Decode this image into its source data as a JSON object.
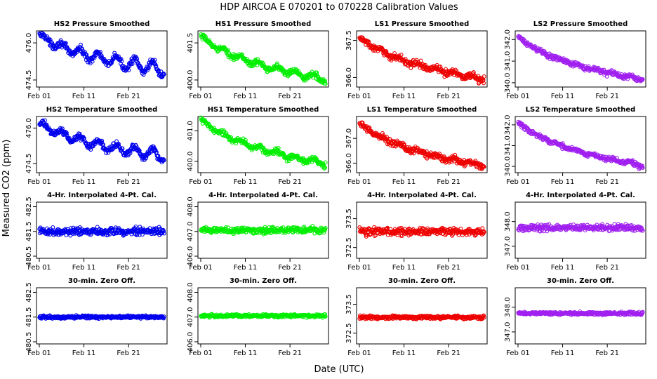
{
  "figure": {
    "title": "HDP    AIRCOA E    070201 to 070228    Calibration Values",
    "xlabel": "Date (UTC)",
    "ylabel": "Measured CO2 (ppm)",
    "x_tick_labels": [
      "Feb 01",
      "Feb 11",
      "Feb 21"
    ]
  },
  "colors": {
    "HS2": "#0000ee",
    "HS1": "#00ee00",
    "LS1": "#ee0000",
    "LS2": "#a020f0"
  },
  "chart_data": [
    {
      "type": "scatter",
      "row": 0,
      "col": 0,
      "tank": "HS2",
      "title": "HS2 Pressure Smoothed",
      "xlim": [
        0,
        28
      ],
      "ylim": [
        474.3,
        476.4
      ],
      "yticks": [
        474.5,
        476.0
      ],
      "ytick_labels": [
        "474.5",
        "476.0"
      ],
      "shape": "trend",
      "start": 476.3,
      "end": 474.9,
      "noise": 0.08,
      "wave": 0.28
    },
    {
      "type": "scatter",
      "row": 0,
      "col": 1,
      "tank": "HS1",
      "title": "HS1 Pressure Smoothed",
      "xlim": [
        0,
        28
      ],
      "ylim": [
        399.8,
        401.9
      ],
      "yticks": [
        400.0,
        401.5
      ],
      "ytick_labels": [
        "400.0",
        "401.5"
      ],
      "shape": "trend",
      "start": 401.75,
      "end": 400.0,
      "noise": 0.07,
      "wave": 0.12
    },
    {
      "type": "scatter",
      "row": 0,
      "col": 2,
      "tank": "LS1",
      "title": "LS1 Pressure Smoothed",
      "xlim": [
        0,
        28
      ],
      "ylim": [
        365.7,
        367.8
      ],
      "yticks": [
        366.0,
        367.5
      ],
      "ytick_labels": [
        "366.0",
        "367.5"
      ],
      "shape": "trend",
      "start": 367.6,
      "end": 365.9,
      "noise": 0.08,
      "wave": 0.08
    },
    {
      "type": "scatter",
      "row": 0,
      "col": 3,
      "tank": "LS2",
      "title": "LS2 Pressure Smoothed",
      "xlim": [
        0,
        28
      ],
      "ylim": [
        339.9,
        342.3
      ],
      "yticks": [
        340.0,
        341.0,
        342.0
      ],
      "ytick_labels": [
        "340.0",
        "341.0",
        "342.0"
      ],
      "shape": "trend",
      "start": 342.1,
      "end": 340.1,
      "noise": 0.07,
      "wave": 0.05
    },
    {
      "type": "scatter",
      "row": 1,
      "col": 0,
      "tank": "HS2",
      "title": "HS2 Temperature Smoothed",
      "xlim": [
        0,
        28
      ],
      "ylim": [
        474.2,
        476.4
      ],
      "yticks": [
        474.5,
        476.0
      ],
      "ytick_labels": [
        "474.5",
        "476.0"
      ],
      "shape": "trend",
      "start": 476.2,
      "end": 474.8,
      "noise": 0.08,
      "wave": 0.25
    },
    {
      "type": "scatter",
      "row": 1,
      "col": 1,
      "tank": "HS1",
      "title": "HS1 Temperature Smoothed",
      "xlim": [
        0,
        28
      ],
      "ylim": [
        399.7,
        401.4
      ],
      "yticks": [
        400.0,
        401.0
      ],
      "ytick_labels": [
        "400.0",
        "401.0"
      ],
      "shape": "trend",
      "start": 401.35,
      "end": 399.9,
      "noise": 0.06,
      "wave": 0.08
    },
    {
      "type": "scatter",
      "row": 1,
      "col": 2,
      "tank": "LS1",
      "title": "LS1 Temperature Smoothed",
      "xlim": [
        0,
        28
      ],
      "ylim": [
        365.7,
        367.8
      ],
      "yticks": [
        366.0,
        367.0
      ],
      "ytick_labels": [
        "366.0",
        "367.0"
      ],
      "shape": "trend",
      "start": 367.6,
      "end": 365.85,
      "noise": 0.08,
      "wave": 0.07
    },
    {
      "type": "scatter",
      "row": 1,
      "col": 3,
      "tank": "LS2",
      "title": "LS2 Temperature Smoothed",
      "xlim": [
        0,
        28
      ],
      "ylim": [
        339.8,
        342.3
      ],
      "yticks": [
        340.0,
        341.0,
        342.0
      ],
      "ytick_labels": [
        "340.0",
        "341.0",
        "342.0"
      ],
      "shape": "trend",
      "start": 342.1,
      "end": 340.0,
      "noise": 0.07,
      "wave": 0.05
    },
    {
      "type": "scatter",
      "row": 2,
      "col": 0,
      "tank": "HS2",
      "title": "4-Hr. Interpolated 4-Pt. Cal.",
      "xlim": [
        0,
        28
      ],
      "ylim": [
        480.5,
        482.6
      ],
      "yticks": [
        480.5,
        481.5,
        482.5
      ],
      "ytick_labels": [
        "480.5",
        "481.5",
        "482.5"
      ],
      "shape": "flat",
      "start": 481.5,
      "end": 481.5,
      "noise": 0.09,
      "wave": 0.0
    },
    {
      "type": "scatter",
      "row": 2,
      "col": 1,
      "tank": "HS1",
      "title": "4-Hr. Interpolated 4-Pt. Cal.",
      "xlim": [
        0,
        28
      ],
      "ylim": [
        406.0,
        408.1
      ],
      "yticks": [
        406.0,
        407.0,
        408.0
      ],
      "ytick_labels": [
        "406.0",
        "407.0",
        "408.0"
      ],
      "shape": "flat",
      "start": 407.05,
      "end": 407.05,
      "noise": 0.08,
      "wave": 0.0
    },
    {
      "type": "scatter",
      "row": 2,
      "col": 2,
      "tank": "LS1",
      "title": "4-Hr. Interpolated 4-Pt. Cal.",
      "xlim": [
        0,
        28
      ],
      "ylim": [
        372.2,
        374.0
      ],
      "yticks": [
        372.5,
        373.5
      ],
      "ytick_labels": [
        "372.5",
        "373.5"
      ],
      "shape": "flat",
      "start": 373.05,
      "end": 373.05,
      "noise": 0.08,
      "wave": 0.0
    },
    {
      "type": "scatter",
      "row": 2,
      "col": 3,
      "tank": "LS2",
      "title": "4-Hr. Interpolated 4-Pt. Cal.",
      "xlim": [
        0,
        28
      ],
      "ylim": [
        346.6,
        348.7
      ],
      "yticks": [
        347.0,
        348.0
      ],
      "ytick_labels": [
        "347.0",
        "348.0"
      ],
      "shape": "flat",
      "start": 347.75,
      "end": 347.75,
      "noise": 0.08,
      "wave": 0.0
    },
    {
      "type": "scatter",
      "row": 3,
      "col": 0,
      "tank": "HS2",
      "title": "30-min. Zero Off.",
      "xlim": [
        0,
        28
      ],
      "ylim": [
        480.5,
        482.6
      ],
      "yticks": [
        480.5,
        481.5,
        482.5
      ],
      "ytick_labels": [
        "480.5",
        "481.5",
        "482.5"
      ],
      "shape": "flat",
      "start": 481.5,
      "end": 481.5,
      "noise": 0.035,
      "wave": 0.0
    },
    {
      "type": "scatter",
      "row": 3,
      "col": 1,
      "tank": "HS1",
      "title": "30-min. Zero Off.",
      "xlim": [
        0,
        28
      ],
      "ylim": [
        406.0,
        408.1
      ],
      "yticks": [
        406.0,
        407.0,
        408.0
      ],
      "ytick_labels": [
        "406.0",
        "407.0",
        "408.0"
      ],
      "shape": "flat",
      "start": 407.05,
      "end": 407.05,
      "noise": 0.035,
      "wave": 0.0
    },
    {
      "type": "scatter",
      "row": 3,
      "col": 2,
      "tank": "LS1",
      "title": "30-min. Zero Off.",
      "xlim": [
        0,
        28
      ],
      "ylim": [
        372.2,
        374.0
      ],
      "yticks": [
        372.5,
        373.5
      ],
      "ytick_labels": [
        "372.5",
        "373.5"
      ],
      "shape": "flat",
      "start": 373.05,
      "end": 373.05,
      "noise": 0.035,
      "wave": 0.0
    },
    {
      "type": "scatter",
      "row": 3,
      "col": 3,
      "tank": "LS2",
      "title": "30-min. Zero Off.",
      "xlim": [
        0,
        28
      ],
      "ylim": [
        346.6,
        348.7
      ],
      "yticks": [
        347.0,
        348.0
      ],
      "ytick_labels": [
        "347.0",
        "348.0"
      ],
      "shape": "flat",
      "start": 347.75,
      "end": 347.75,
      "noise": 0.035,
      "wave": 0.0
    }
  ]
}
